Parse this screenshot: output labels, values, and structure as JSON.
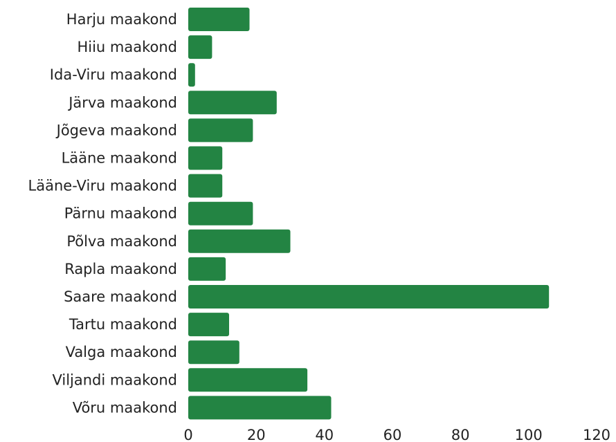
{
  "chart_data": {
    "type": "bar",
    "orientation": "horizontal",
    "categories": [
      "Harju maakond",
      "Hiiu maakond",
      "Ida-Viru maakond",
      "Järva maakond",
      "Jõgeva maakond",
      "Lääne maakond",
      "Lääne-Viru maakond",
      "Pärnu maakond",
      "Põlva maakond",
      "Rapla maakond",
      "Saare maakond",
      "Tartu maakond",
      "Valga maakond",
      "Viljandi maakond",
      "Võru maakond"
    ],
    "values": [
      18,
      7,
      2,
      26,
      19,
      10,
      10,
      19,
      30,
      11,
      106,
      12,
      15,
      35,
      42
    ],
    "xlim": [
      0,
      120
    ],
    "xticks": [
      0,
      20,
      40,
      60,
      80,
      100,
      120
    ],
    "xtick_labels": [
      "0",
      "20",
      "40",
      "60",
      "80",
      "100",
      "120"
    ],
    "bar_color": "#238443",
    "grid": false,
    "legend": "none",
    "title": "",
    "xlabel": "",
    "ylabel": ""
  }
}
